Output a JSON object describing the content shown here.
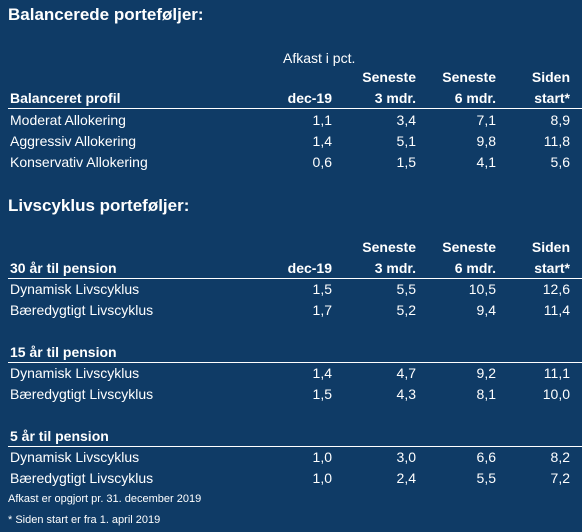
{
  "section1": {
    "title": "Balancerede porteføljer:",
    "afkast_caption": "Afkast i pct.",
    "row_header": "Balanceret profil",
    "columns": [
      {
        "line1": "",
        "line2": "dec-19"
      },
      {
        "line1": "Seneste",
        "line2": "3 mdr."
      },
      {
        "line1": "Seneste",
        "line2": "6 mdr."
      },
      {
        "line1": "Siden",
        "line2": "start*"
      }
    ],
    "rows": [
      {
        "name": "Moderat Allokering",
        "values": [
          "1,1",
          "3,4",
          "7,1",
          "8,9"
        ]
      },
      {
        "name": "Aggressiv Allokering",
        "values": [
          "1,4",
          "5,1",
          "9,8",
          "11,8"
        ]
      },
      {
        "name": "Konservativ Allokering",
        "values": [
          "0,6",
          "1,5",
          "4,1",
          "5,6"
        ]
      }
    ]
  },
  "section2": {
    "title": "Livscyklus porteføljer:",
    "columns": [
      {
        "line1": "",
        "line2": "dec-19"
      },
      {
        "line1": "Seneste",
        "line2": "3 mdr."
      },
      {
        "line1": "Seneste",
        "line2": "6 mdr."
      },
      {
        "line1": "Siden",
        "line2": "start*"
      }
    ],
    "groups": [
      {
        "header": "30 år til pension",
        "rows": [
          {
            "name": "Dynamisk Livscyklus",
            "values": [
              "1,5",
              "5,5",
              "10,5",
              "12,6"
            ]
          },
          {
            "name": "Bæredygtigt Livscyklus",
            "values": [
              "1,7",
              "5,2",
              "9,4",
              "11,4"
            ]
          }
        ]
      },
      {
        "header": "15 år til pension",
        "rows": [
          {
            "name": "Dynamisk Livscyklus",
            "values": [
              "1,4",
              "4,7",
              "9,2",
              "11,1"
            ]
          },
          {
            "name": "Bæredygtigt Livscyklus",
            "values": [
              "1,5",
              "4,3",
              "8,1",
              "10,0"
            ]
          }
        ]
      },
      {
        "header": "5 år til pension",
        "rows": [
          {
            "name": "Dynamisk Livscyklus",
            "values": [
              "1,0",
              "3,0",
              "6,6",
              "8,2"
            ]
          },
          {
            "name": "Bæredygtigt Livscyklus",
            "values": [
              "1,0",
              "2,4",
              "5,5",
              "7,2"
            ]
          }
        ]
      }
    ]
  },
  "footnotes": [
    "Afkast er opgjort pr. 31. december 2019",
    "* Siden start er fra 1. april 2019"
  ]
}
